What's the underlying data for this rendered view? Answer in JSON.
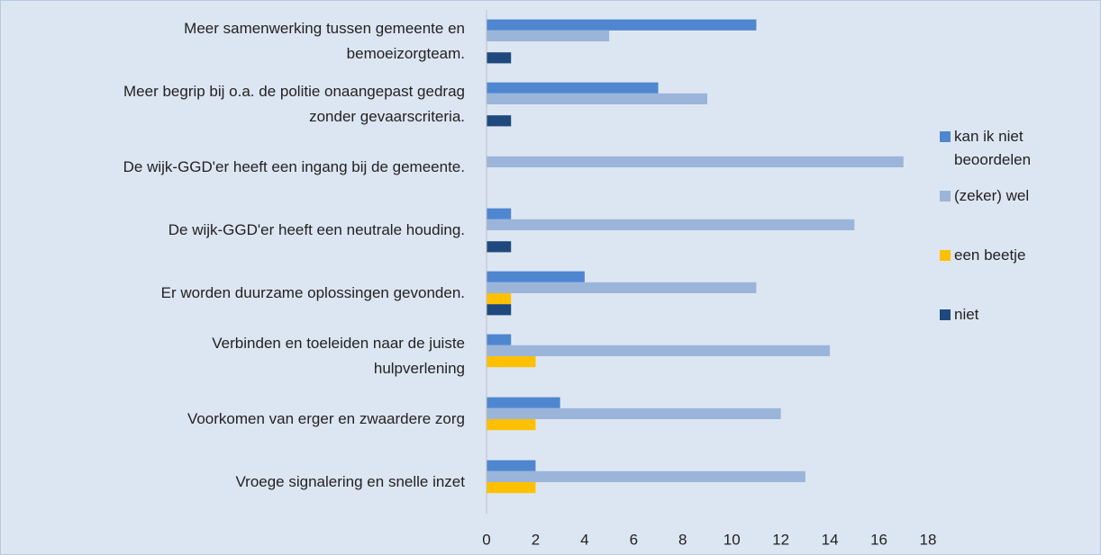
{
  "chart_data": {
    "type": "barh",
    "categories": [
      "Meer samenwerking tussen gemeente en\nbemoeizorgteam.",
      "Meer begrip bij o.a. de politie onaangepast gedrag\nzonder gevaarscriteria.",
      "De wijk-GGD'er heeft een ingang bij de gemeente.",
      "De wijk-GGD'er heeft een neutrale houding.",
      "Er worden duurzame oplossingen gevonden.",
      "Verbinden en toeleiden naar de juiste\nhulpverlening",
      "Voorkomen van erger en zwaardere zorg",
      "Vroege signalering en snelle inzet"
    ],
    "series": [
      {
        "name": "kan ik niet beoordelen",
        "color": "#4f86d0",
        "values": [
          11,
          7,
          0,
          1,
          4,
          1,
          3,
          2
        ]
      },
      {
        "name": "(zeker) wel",
        "color": "#9bb5da",
        "values": [
          5,
          9,
          17,
          15,
          11,
          14,
          12,
          13
        ]
      },
      {
        "name": "een beetje",
        "color": "#ffc000",
        "values": [
          0,
          0,
          0,
          0,
          1,
          2,
          2,
          2
        ]
      },
      {
        "name": "niet",
        "color": "#1f497d",
        "values": [
          1,
          1,
          0,
          1,
          1,
          0,
          0,
          0
        ]
      }
    ],
    "xlim": [
      0,
      18
    ],
    "xticks": [
      0,
      2,
      4,
      6,
      8,
      10,
      12,
      14,
      16,
      18
    ],
    "grid": false,
    "legend": "right"
  }
}
